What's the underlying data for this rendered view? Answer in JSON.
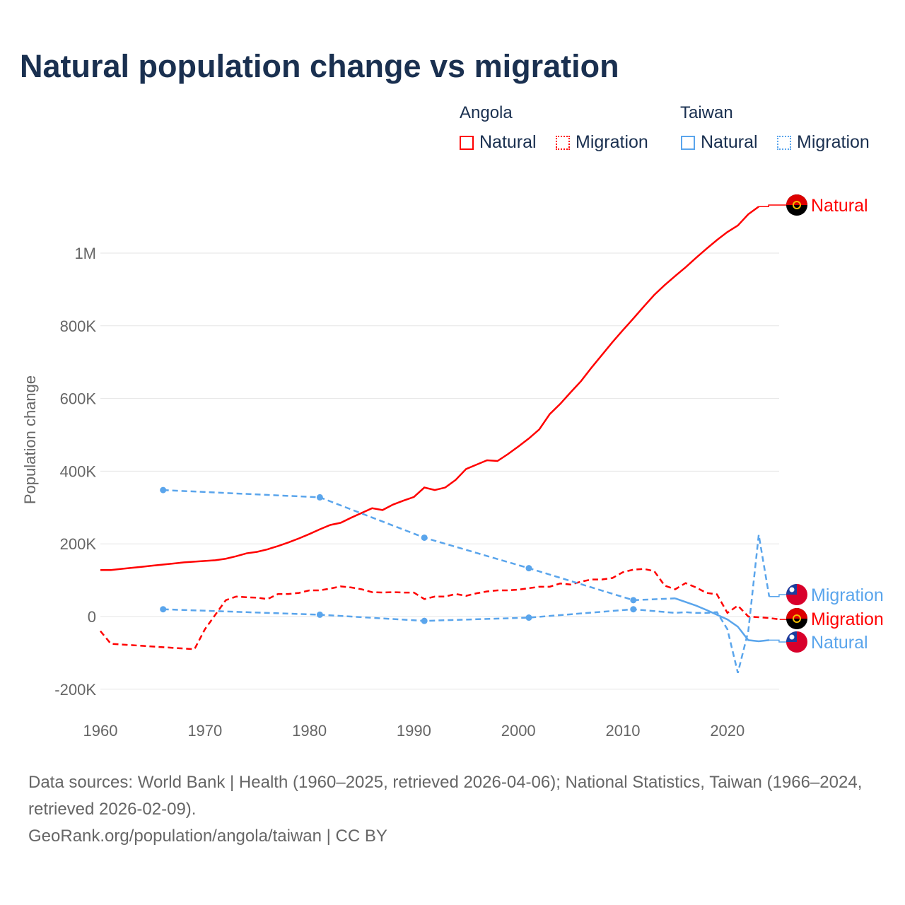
{
  "title": "Natural population change vs migration",
  "legend": {
    "groups": [
      {
        "name": "Angola",
        "items": [
          "Natural",
          "Migration"
        ]
      },
      {
        "name": "Taiwan",
        "items": [
          "Natural",
          "Migration"
        ]
      }
    ]
  },
  "colors": {
    "angola": "#ff0000",
    "taiwan": "#5aa5ec",
    "text": "#1a3050",
    "grid": "#e5e5e5"
  },
  "footer": {
    "line1": "Data sources: World Bank | Health (1960–2025, retrieved 2026-04-06); National Statistics, Taiwan (1966–2024, retrieved 2026-02-09).",
    "line2": "GeoRank.org/population/angola/taiwan | CC BY"
  },
  "chart_data": {
    "type": "line",
    "title": "Natural population change vs migration",
    "xlabel": "",
    "ylabel": "Population change",
    "xlim": [
      1960,
      2025
    ],
    "ylim": [
      -200000,
      1150000
    ],
    "xticks": [
      1960,
      1970,
      1980,
      1990,
      2000,
      2010,
      2020
    ],
    "yticks": [
      {
        "v": -200000,
        "label": "-200K"
      },
      {
        "v": 0,
        "label": "0"
      },
      {
        "v": 200000,
        "label": "200K"
      },
      {
        "v": 400000,
        "label": "400K"
      },
      {
        "v": 600000,
        "label": "600K"
      },
      {
        "v": 800000,
        "label": "800K"
      },
      {
        "v": 1000000,
        "label": "1M"
      }
    ],
    "grid": true,
    "legend_position": "top-right",
    "series": [
      {
        "name": "Angola Natural",
        "label": "Natural",
        "country": "angola",
        "dashed": false,
        "x": [
          1960,
          1961,
          1962,
          1963,
          1964,
          1965,
          1966,
          1967,
          1968,
          1969,
          1970,
          1971,
          1972,
          1973,
          1974,
          1975,
          1976,
          1977,
          1978,
          1979,
          1980,
          1981,
          1982,
          1983,
          1984,
          1985,
          1986,
          1987,
          1988,
          1989,
          1990,
          1991,
          1992,
          1993,
          1994,
          1995,
          1996,
          1997,
          1998,
          1999,
          2000,
          2001,
          2002,
          2003,
          2004,
          2005,
          2006,
          2007,
          2008,
          2009,
          2010,
          2011,
          2012,
          2013,
          2014,
          2015,
          2016,
          2017,
          2018,
          2019,
          2020,
          2021,
          2022,
          2023
        ],
        "y": [
          128,
          128,
          131,
          134,
          137,
          140,
          143,
          146,
          149,
          151,
          153,
          155,
          159,
          166,
          174,
          178,
          185,
          194,
          204,
          215,
          227,
          240,
          252,
          258,
          272,
          285,
          298,
          293,
          308,
          319,
          329,
          355,
          348,
          355,
          376,
          406,
          418,
          430,
          428,
          447,
          468,
          490,
          515,
          557,
          585,
          617,
          648,
          685,
          720,
          755,
          788,
          820,
          853,
          885,
          912,
          937,
          961,
          987,
          1012,
          1036,
          1058,
          1076,
          1107,
          1128
        ]
      },
      {
        "name": "Angola Migration",
        "label": "Migration",
        "country": "angola",
        "dashed": true,
        "x": [
          1960,
          1961,
          1969,
          1970,
          1971,
          1972,
          1973,
          1974,
          1975,
          1976,
          1977,
          1978,
          1979,
          1980,
          1981,
          1982,
          1983,
          1984,
          1985,
          1986,
          1987,
          1988,
          1989,
          1990,
          1991,
          1992,
          1993,
          1994,
          1995,
          1996,
          1997,
          1998,
          1999,
          2000,
          2001,
          2002,
          2003,
          2004,
          2005,
          2006,
          2007,
          2008,
          2009,
          2010,
          2011,
          2012,
          2013,
          2014,
          2015,
          2016,
          2017,
          2018,
          2019,
          2020,
          2021,
          2022,
          2023,
          2024,
          2025
        ],
        "y": [
          -40,
          -75,
          -90,
          -35,
          5,
          45,
          55,
          53,
          52,
          48,
          62,
          62,
          65,
          72,
          72,
          77,
          83,
          80,
          75,
          67,
          66,
          67,
          66,
          66,
          48,
          55,
          55,
          62,
          57,
          64,
          69,
          72,
          72,
          74,
          78,
          82,
          82,
          91,
          88,
          96,
          102,
          102,
          106,
          122,
          129,
          131,
          125,
          85,
          75,
          92,
          80,
          65,
          61,
          10,
          30,
          0,
          -2,
          -4,
          -8
        ]
      },
      {
        "name": "Taiwan Natural",
        "label": "Natural",
        "country": "taiwan",
        "dashed": false,
        "dashed_until": 2015,
        "markers": [
          1966,
          1981,
          1991,
          2001,
          2011
        ],
        "x": [
          1966,
          1981,
          1991,
          2001,
          2011,
          2015,
          2016,
          2017,
          2018,
          2019,
          2020,
          2021,
          2022,
          2023,
          2024
        ],
        "y": [
          348,
          328,
          217,
          133,
          45,
          50,
          40,
          30,
          18,
          5,
          -8,
          -28,
          -65,
          -68,
          -65
        ]
      },
      {
        "name": "Taiwan Migration",
        "label": "Migration",
        "country": "taiwan",
        "dashed": true,
        "markers": [
          1966,
          1981,
          1991,
          2001,
          2011
        ],
        "x": [
          1966,
          1981,
          1991,
          2001,
          2011,
          2015,
          2016,
          2017,
          2018,
          2019,
          2020,
          2021,
          2022,
          2023,
          2024
        ],
        "y": [
          20,
          5,
          -12,
          -3,
          20,
          10,
          12,
          10,
          10,
          12,
          -35,
          -155,
          -40,
          225,
          55
        ]
      }
    ],
    "y_units": "thousands"
  }
}
